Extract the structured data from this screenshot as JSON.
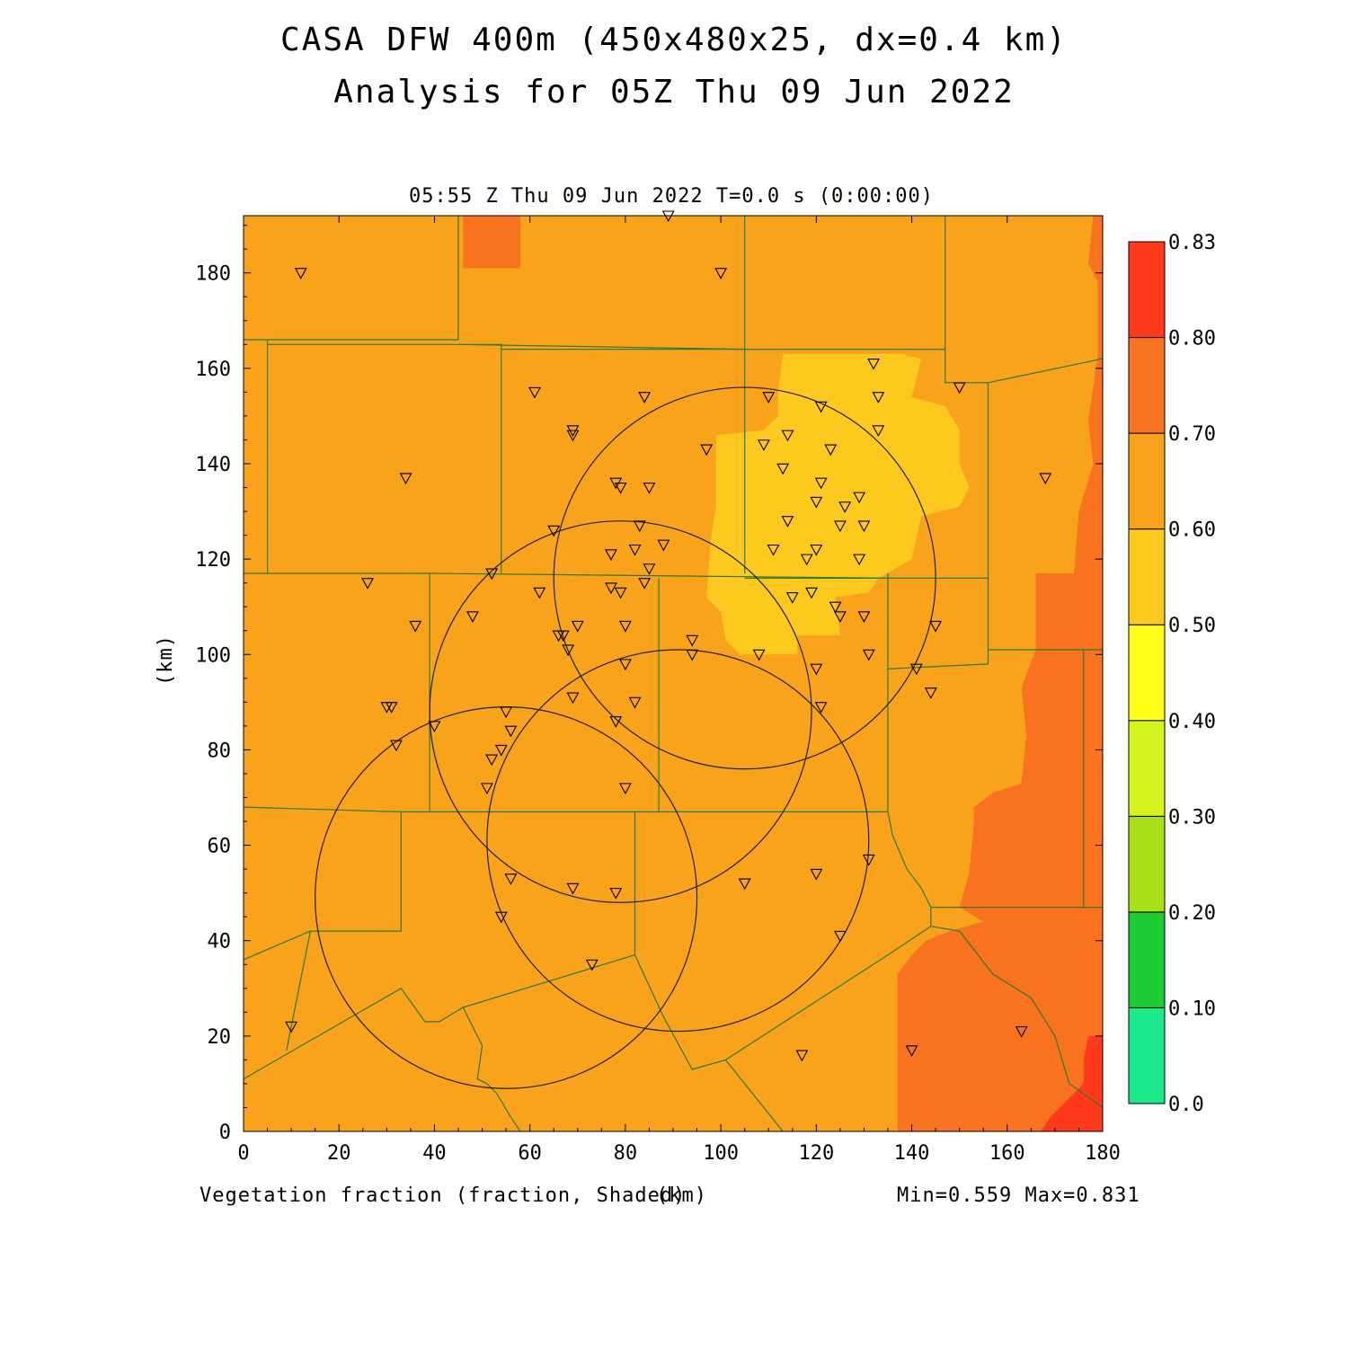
{
  "title_line1": "CASA DFW 400m (450x480x25, dx=0.4 km)",
  "title_line2": "Analysis for 05Z Thu 09 Jun 2022",
  "plot_time": "05:55 Z Thu 09 Jun 2022   T=0.0 s (0:00:00)",
  "y_axis_label": "(km)",
  "x_axis_label": "(km)",
  "field_label": "Vegetation fraction (fraction, Shaded)",
  "min_max": "Min=0.559 Max=0.831",
  "x_ticks": [
    "0",
    "20",
    "40",
    "60",
    "80",
    "100",
    "120",
    "140",
    "160",
    "180"
  ],
  "y_ticks": [
    "0",
    "20",
    "40",
    "60",
    "80",
    "100",
    "120",
    "140",
    "160",
    "180"
  ],
  "colorbar": {
    "labels": [
      "0.0",
      "0.10",
      "0.20",
      "0.30",
      "0.40",
      "0.50",
      "0.60",
      "0.70",
      "0.80",
      "0.83"
    ],
    "colors": [
      "#1ee88c",
      "#1ccb33",
      "#a8e01a",
      "#d4f31f",
      "#ffff1a",
      "#fdc91f",
      "#f9a31d",
      "#f87220",
      "#ff3a1c"
    ]
  },
  "map": {
    "x_range_km": [
      0,
      180
    ],
    "y_range_km": [
      0,
      192
    ],
    "fill_colors": {
      "base": "#f9a31d",
      "low": "#fdc91f",
      "high": "#f87220",
      "max": "#ff3a1c"
    },
    "radar_rings": [
      {
        "cx": 105,
        "cy": 116,
        "r": 40
      },
      {
        "cx": 79,
        "cy": 88,
        "r": 40
      },
      {
        "cx": 55,
        "cy": 49,
        "r": 40
      },
      {
        "cx": 91,
        "cy": 61,
        "r": 40
      }
    ],
    "stations": [
      [
        12,
        180
      ],
      [
        89,
        192
      ],
      [
        100,
        180
      ],
      [
        34,
        137
      ],
      [
        61,
        155
      ],
      [
        69,
        146
      ],
      [
        69,
        147
      ],
      [
        84,
        154
      ],
      [
        110,
        154
      ],
      [
        121,
        152
      ],
      [
        132,
        161
      ],
      [
        133,
        154
      ],
      [
        133,
        147
      ],
      [
        97,
        143
      ],
      [
        109,
        144
      ],
      [
        114,
        146
      ],
      [
        123,
        143
      ],
      [
        113,
        139
      ],
      [
        78,
        136
      ],
      [
        79,
        135
      ],
      [
        85,
        135
      ],
      [
        121,
        136
      ],
      [
        120,
        132
      ],
      [
        126,
        131
      ],
      [
        129,
        133
      ],
      [
        114,
        128
      ],
      [
        125,
        127
      ],
      [
        130,
        127
      ],
      [
        65,
        126
      ],
      [
        83,
        127
      ],
      [
        88,
        123
      ],
      [
        77,
        121
      ],
      [
        82,
        122
      ],
      [
        111,
        122
      ],
      [
        120,
        122
      ],
      [
        118,
        120
      ],
      [
        129,
        120
      ],
      [
        85,
        118
      ],
      [
        84,
        115
      ],
      [
        52,
        117
      ],
      [
        26,
        115
      ],
      [
        62,
        113
      ],
      [
        77,
        114
      ],
      [
        79,
        113
      ],
      [
        115,
        112
      ],
      [
        119,
        113
      ],
      [
        124,
        110
      ],
      [
        125,
        108
      ],
      [
        130,
        108
      ],
      [
        48,
        108
      ],
      [
        36,
        106
      ],
      [
        66,
        104
      ],
      [
        67,
        104
      ],
      [
        70,
        106
      ],
      [
        80,
        106
      ],
      [
        68,
        101
      ],
      [
        94,
        103
      ],
      [
        94,
        100
      ],
      [
        108,
        100
      ],
      [
        131,
        100
      ],
      [
        80,
        98
      ],
      [
        120,
        97
      ],
      [
        141,
        97
      ],
      [
        145,
        106
      ],
      [
        69,
        91
      ],
      [
        82,
        90
      ],
      [
        121,
        89
      ],
      [
        144,
        92
      ],
      [
        30,
        89
      ],
      [
        31,
        89
      ],
      [
        32,
        81
      ],
      [
        40,
        85
      ],
      [
        55,
        88
      ],
      [
        56,
        84
      ],
      [
        54,
        80
      ],
      [
        52,
        78
      ],
      [
        51,
        72
      ],
      [
        78,
        86
      ],
      [
        80,
        72
      ],
      [
        131,
        57
      ],
      [
        120,
        54
      ],
      [
        56,
        53
      ],
      [
        69,
        51
      ],
      [
        78,
        50
      ],
      [
        105,
        52
      ],
      [
        54,
        45
      ],
      [
        125,
        41
      ],
      [
        73,
        35
      ],
      [
        10,
        22
      ],
      [
        117,
        16
      ],
      [
        140,
        17
      ],
      [
        163,
        21
      ],
      [
        168,
        137
      ],
      [
        150,
        156
      ]
    ],
    "boundaries": [
      [
        [
          0,
          166
        ],
        [
          45,
          166
        ],
        [
          45,
          192
        ]
      ],
      [
        [
          45,
          165
        ],
        [
          105,
          164
        ],
        [
          105,
          192
        ]
      ],
      [
        [
          105,
          164
        ],
        [
          147,
          164
        ],
        [
          147,
          192
        ]
      ],
      [
        [
          5,
          166
        ],
        [
          5,
          117
        ]
      ],
      [
        [
          5,
          165
        ],
        [
          54,
          165
        ],
        [
          54,
          117
        ]
      ],
      [
        [
          54,
          164
        ],
        [
          105,
          164
        ],
        [
          105,
          117
        ]
      ],
      [
        [
          105,
          116
        ],
        [
          135,
          116
        ],
        [
          135,
          117
        ]
      ],
      [
        [
          0,
          117
        ],
        [
          39,
          117
        ],
        [
          136,
          116
        ],
        [
          156,
          116
        ]
      ],
      [
        [
          147,
          164
        ],
        [
          147,
          157
        ],
        [
          156,
          157
        ],
        [
          180,
          162
        ]
      ],
      [
        [
          156,
          157
        ],
        [
          156,
          101
        ],
        [
          180,
          101
        ]
      ],
      [
        [
          39,
          117
        ],
        [
          39,
          67
        ]
      ],
      [
        [
          87,
          116
        ],
        [
          87,
          67
        ]
      ],
      [
        [
          135,
          116
        ],
        [
          135,
          97
        ],
        [
          156,
          98
        ],
        [
          156,
          101
        ]
      ],
      [
        [
          0,
          68
        ],
        [
          33,
          67
        ],
        [
          87,
          67
        ],
        [
          135,
          67
        ],
        [
          135,
          97
        ]
      ],
      [
        [
          33,
          67
        ],
        [
          33,
          42
        ],
        [
          14,
          42
        ],
        [
          9,
          17
        ]
      ],
      [
        [
          0,
          36
        ],
        [
          14,
          42
        ]
      ],
      [
        [
          0,
          11
        ],
        [
          33,
          30
        ],
        [
          38,
          23
        ],
        [
          41,
          23
        ],
        [
          46,
          26
        ],
        [
          50,
          18
        ],
        [
          49,
          11
        ],
        [
          51,
          10
        ],
        [
          53,
          8
        ],
        [
          56,
          3
        ],
        [
          58,
          0
        ]
      ],
      [
        [
          46,
          26
        ],
        [
          82,
          37
        ],
        [
          82,
          67
        ]
      ],
      [
        [
          82,
          37
        ],
        [
          88,
          24
        ],
        [
          94,
          13
        ],
        [
          101,
          15
        ],
        [
          135,
          37
        ],
        [
          144,
          43
        ]
      ],
      [
        [
          101,
          15
        ],
        [
          113,
          0
        ]
      ],
      [
        [
          135,
          67
        ],
        [
          136,
          62
        ],
        [
          139,
          55
        ],
        [
          142,
          51
        ],
        [
          144,
          47
        ],
        [
          144,
          43
        ]
      ],
      [
        [
          144,
          47
        ],
        [
          176,
          47
        ],
        [
          176,
          101
        ]
      ],
      [
        [
          144,
          43
        ],
        [
          150,
          42
        ],
        [
          157,
          33
        ],
        [
          165,
          28
        ],
        [
          170,
          20
        ],
        [
          173,
          10
        ],
        [
          180,
          5
        ]
      ],
      [
        [
          176,
          47
        ],
        [
          180,
          47
        ]
      ]
    ]
  }
}
